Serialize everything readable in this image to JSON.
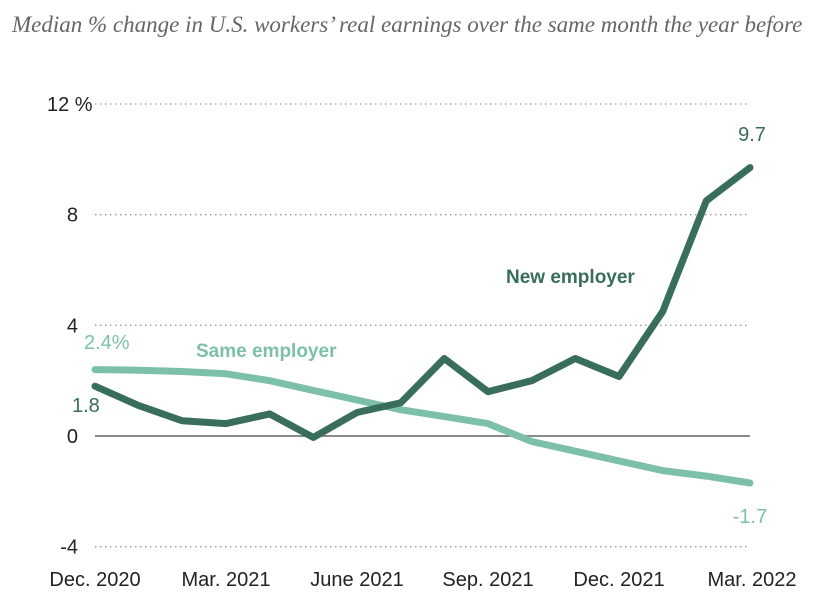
{
  "chart_data": {
    "type": "line",
    "title": "Median % change in U.S. workers’ real earnings over the same month the year before",
    "xlabel": "",
    "ylabel": "",
    "x": [
      "Dec. 2020",
      "Jan. 2021",
      "Feb. 2021",
      "Mar. 2021",
      "Apr. 2021",
      "May 2021",
      "June 2021",
      "July 2021",
      "Aug. 2021",
      "Sep. 2021",
      "Oct. 2021",
      "Nov. 2021",
      "Dec. 2021",
      "Jan. 2022",
      "Feb. 2022",
      "Mar. 2022"
    ],
    "x_tick_labels": [
      "Dec. 2020",
      "Mar. 2021",
      "June 2021",
      "Sep. 2021",
      "Dec. 2021",
      "Mar. 2022"
    ],
    "y_tick_labels": [
      "12 %",
      "8",
      "4",
      "0",
      "-4"
    ],
    "y_ticks": [
      12,
      8,
      4,
      0,
      -4
    ],
    "ylim": [
      -4,
      12
    ],
    "grid": "dotted horizontal",
    "series": [
      {
        "name": "New employer",
        "color": "#3a6e5c",
        "values": [
          1.8,
          1.1,
          0.55,
          0.45,
          0.8,
          -0.05,
          0.85,
          1.2,
          2.8,
          1.6,
          2.0,
          2.8,
          2.15,
          4.5,
          8.5,
          9.7
        ],
        "start_label": "1.8",
        "end_label": "9.7"
      },
      {
        "name": "Same employer",
        "color": "#7dc0aa",
        "values": [
          2.4,
          2.38,
          2.33,
          2.25,
          2.0,
          1.65,
          1.3,
          0.95,
          0.7,
          0.45,
          -0.2,
          -0.55,
          -0.9,
          -1.25,
          -1.45,
          -1.7
        ],
        "start_label": "2.4%",
        "end_label": "-1.7"
      }
    ]
  }
}
